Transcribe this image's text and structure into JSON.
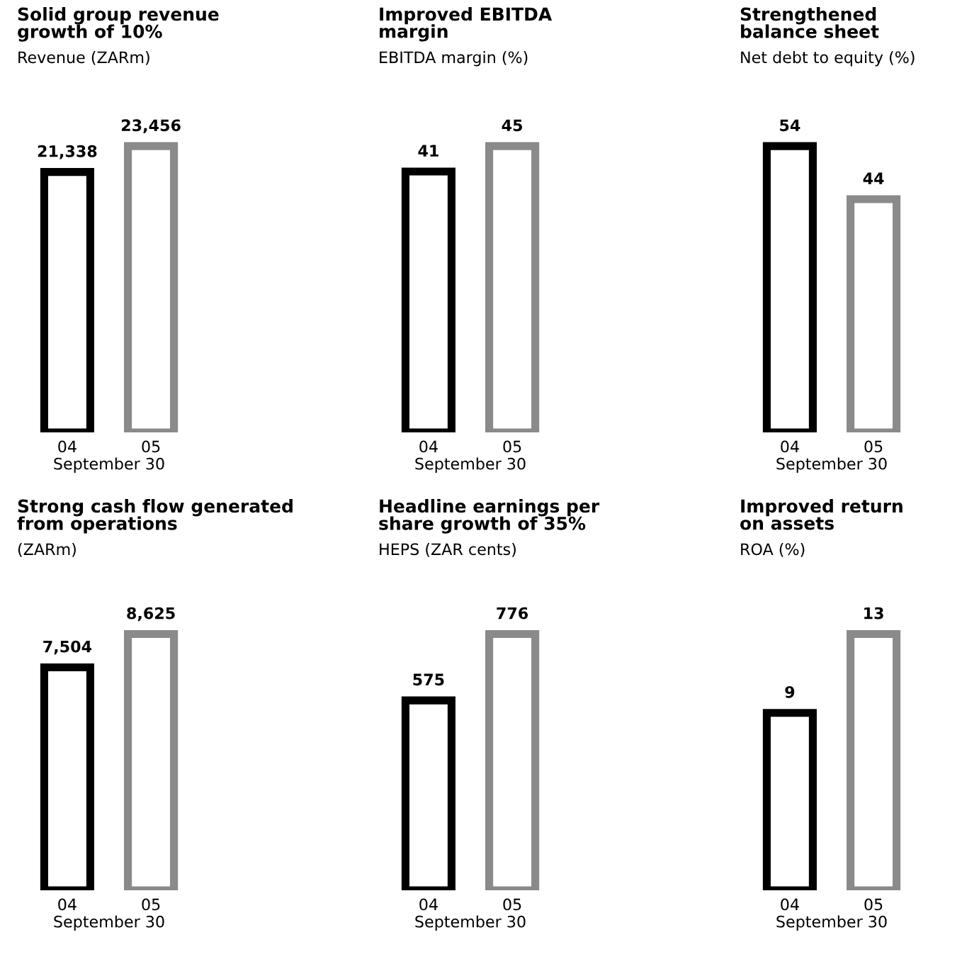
{
  "chart_data": [
    {
      "type": "bar",
      "title": "Solid group revenue\ngrowth of 10%",
      "subtitle": "Revenue (ZARm)",
      "xlabel": "September 30",
      "categories": [
        "04",
        "05"
      ],
      "values": [
        21338,
        23456
      ],
      "value_labels": [
        "21,338",
        "23,456"
      ],
      "colors": [
        "#000000",
        "#8a8a8a"
      ],
      "grid": false,
      "legend": false
    },
    {
      "type": "bar",
      "title": "Improved EBITDA\nmargin",
      "subtitle": "EBITDA margin (%)",
      "xlabel": "September 30",
      "categories": [
        "04",
        "05"
      ],
      "values": [
        41,
        45
      ],
      "value_labels": [
        "41",
        "45"
      ],
      "colors": [
        "#000000",
        "#8a8a8a"
      ],
      "grid": false,
      "legend": false
    },
    {
      "type": "bar",
      "title": "Strengthened\nbalance sheet",
      "subtitle": "Net debt to equity (%)",
      "xlabel": "September 30",
      "categories": [
        "04",
        "05"
      ],
      "values": [
        54,
        44
      ],
      "value_labels": [
        "54",
        "44"
      ],
      "colors": [
        "#000000",
        "#8a8a8a"
      ],
      "grid": false,
      "legend": false
    },
    {
      "type": "bar",
      "title": "Strong cash flow generated\nfrom operations",
      "subtitle": "(ZARm)",
      "xlabel": "September 30",
      "categories": [
        "04",
        "05"
      ],
      "values": [
        7504,
        8625
      ],
      "value_labels": [
        "7,504",
        "8,625"
      ],
      "colors": [
        "#000000",
        "#8a8a8a"
      ],
      "grid": false,
      "legend": false
    },
    {
      "type": "bar",
      "title": "Headline earnings per\nshare growth of 35%",
      "subtitle": "HEPS (ZAR cents)",
      "xlabel": "September 30",
      "categories": [
        "04",
        "05"
      ],
      "values": [
        575,
        776
      ],
      "value_labels": [
        "575",
        "776"
      ],
      "colors": [
        "#000000",
        "#8a8a8a"
      ],
      "grid": false,
      "legend": false
    },
    {
      "type": "bar",
      "title": "Improved return\non assets",
      "subtitle": "ROA (%)",
      "xlabel": "September 30",
      "categories": [
        "04",
        "05"
      ],
      "values": [
        9,
        13
      ],
      "value_labels": [
        "9",
        "13"
      ],
      "colors": [
        "#000000",
        "#8a8a8a"
      ],
      "grid": false,
      "legend": false
    }
  ]
}
